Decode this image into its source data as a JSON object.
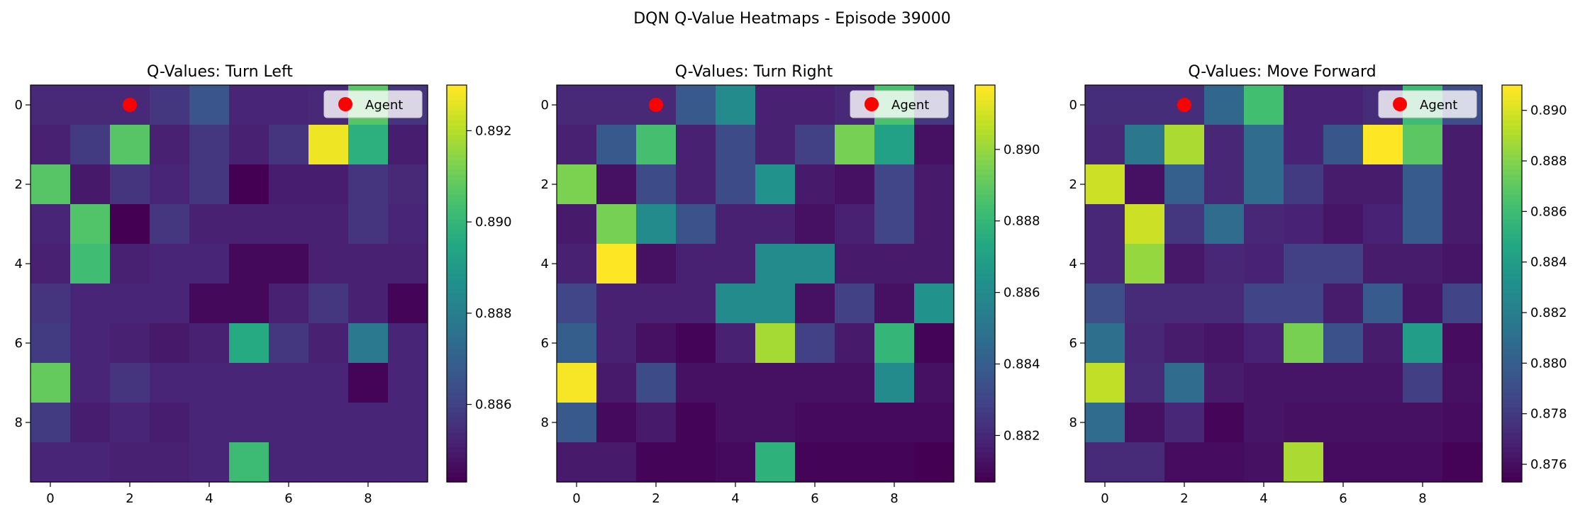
{
  "figure": {
    "title": "DQN Q-Value Heatmaps - Episode 39000"
  },
  "colors": {
    "agent_marker": "#ff0000",
    "axis": "#000000",
    "background": "#ffffff",
    "legend_frame": "#cccccc",
    "colormap": "viridis"
  },
  "chart_data": [
    {
      "type": "heatmap",
      "title": "Q-Values: Turn Left",
      "x_ticks": [
        0,
        2,
        4,
        6,
        8
      ],
      "y_ticks": [
        0,
        2,
        4,
        6,
        8
      ],
      "vmin": 0.8843,
      "vmax": 0.893,
      "colorbar_ticks": [
        0.886,
        0.888,
        0.89,
        0.892
      ],
      "legend_label": "Agent",
      "agent": [
        2,
        0
      ],
      "values": [
        [
          0.8853,
          0.8853,
          0.8853,
          0.8857,
          0.8866,
          0.8852,
          0.8852,
          0.8853,
          0.8907,
          0.8856
        ],
        [
          0.8851,
          0.8858,
          0.8907,
          0.8851,
          0.8857,
          0.8851,
          0.8856,
          0.8928,
          0.8898,
          0.885
        ],
        [
          0.8907,
          0.8849,
          0.8856,
          0.8852,
          0.8857,
          0.8843,
          0.885,
          0.885,
          0.8856,
          0.8853
        ],
        [
          0.8852,
          0.8906,
          0.8843,
          0.8857,
          0.8851,
          0.8851,
          0.8851,
          0.8851,
          0.8856,
          0.8852
        ],
        [
          0.8851,
          0.8903,
          0.8851,
          0.8852,
          0.8852,
          0.8845,
          0.8845,
          0.8851,
          0.8851,
          0.8851
        ],
        [
          0.8856,
          0.8852,
          0.8852,
          0.8852,
          0.8845,
          0.8845,
          0.8851,
          0.8857,
          0.8851,
          0.8844
        ],
        [
          0.8858,
          0.8852,
          0.8851,
          0.8849,
          0.8851,
          0.8896,
          0.8857,
          0.8851,
          0.8878,
          0.8852
        ],
        [
          0.8909,
          0.8852,
          0.8856,
          0.8852,
          0.8852,
          0.8852,
          0.8852,
          0.8852,
          0.8844,
          0.8852
        ],
        [
          0.8858,
          0.885,
          0.8852,
          0.885,
          0.8852,
          0.8852,
          0.8852,
          0.8852,
          0.8852,
          0.8852
        ],
        [
          0.8852,
          0.8852,
          0.8851,
          0.8851,
          0.8852,
          0.8902,
          0.8852,
          0.8852,
          0.8852,
          0.8852
        ]
      ]
    },
    {
      "type": "heatmap",
      "title": "Q-Values: Turn Right",
      "x_ticks": [
        0,
        2,
        4,
        6,
        8
      ],
      "y_ticks": [
        0,
        2,
        4,
        6,
        8
      ],
      "vmin": 0.8807,
      "vmax": 0.8918,
      "colorbar_ticks": [
        0.882,
        0.884,
        0.886,
        0.888,
        0.89
      ],
      "legend_label": "Agent",
      "agent": [
        2,
        0
      ],
      "values": [
        [
          0.882,
          0.882,
          0.882,
          0.8838,
          0.886,
          0.8817,
          0.8817,
          0.882,
          0.8886,
          0.8825
        ],
        [
          0.8817,
          0.8838,
          0.8885,
          0.8817,
          0.8832,
          0.8817,
          0.8828,
          0.8895,
          0.887,
          0.8812
        ],
        [
          0.8896,
          0.8812,
          0.8832,
          0.8817,
          0.8832,
          0.8863,
          0.8815,
          0.8812,
          0.883,
          0.8815
        ],
        [
          0.8815,
          0.8895,
          0.886,
          0.8835,
          0.8817,
          0.8817,
          0.8812,
          0.8817,
          0.883,
          0.8815
        ],
        [
          0.8817,
          0.8918,
          0.8812,
          0.8817,
          0.8817,
          0.886,
          0.886,
          0.8815,
          0.8815,
          0.8815
        ],
        [
          0.883,
          0.8817,
          0.8817,
          0.8817,
          0.886,
          0.886,
          0.8812,
          0.8828,
          0.8812,
          0.8863
        ],
        [
          0.884,
          0.8817,
          0.8812,
          0.8808,
          0.8817,
          0.8903,
          0.8828,
          0.8815,
          0.888,
          0.8808
        ],
        [
          0.8917,
          0.8815,
          0.8832,
          0.8812,
          0.8812,
          0.8812,
          0.8812,
          0.8812,
          0.886,
          0.8812
        ],
        [
          0.8838,
          0.881,
          0.8815,
          0.8808,
          0.8812,
          0.8812,
          0.881,
          0.881,
          0.881,
          0.881
        ],
        [
          0.8815,
          0.8815,
          0.8808,
          0.8808,
          0.881,
          0.8878,
          0.8808,
          0.8808,
          0.8808,
          0.8807
        ]
      ]
    },
    {
      "type": "heatmap",
      "title": "Q-Values: Move Forward",
      "x_ticks": [
        0,
        2,
        4,
        6,
        8
      ],
      "y_ticks": [
        0,
        2,
        4,
        6,
        8
      ],
      "vmin": 0.8753,
      "vmax": 0.891,
      "colorbar_ticks": [
        0.876,
        0.878,
        0.88,
        0.882,
        0.884,
        0.886,
        0.888,
        0.89
      ],
      "legend_label": "Agent",
      "agent": [
        2,
        0
      ],
      "values": [
        [
          0.8773,
          0.8773,
          0.8773,
          0.8805,
          0.8862,
          0.8768,
          0.8768,
          0.8773,
          0.886,
          0.879
        ],
        [
          0.877,
          0.8815,
          0.889,
          0.877,
          0.8808,
          0.8768,
          0.8795,
          0.891,
          0.887,
          0.8765
        ],
        [
          0.8898,
          0.876,
          0.88,
          0.877,
          0.8808,
          0.878,
          0.8765,
          0.8765,
          0.8798,
          0.8765
        ],
        [
          0.877,
          0.8898,
          0.8778,
          0.8808,
          0.877,
          0.8768,
          0.8762,
          0.8768,
          0.8798,
          0.8765
        ],
        [
          0.877,
          0.8885,
          0.8763,
          0.877,
          0.8768,
          0.8783,
          0.8783,
          0.8765,
          0.8765,
          0.8762
        ],
        [
          0.879,
          0.8772,
          0.8772,
          0.8772,
          0.8785,
          0.8785,
          0.8765,
          0.8798,
          0.8762,
          0.8785
        ],
        [
          0.881,
          0.877,
          0.8765,
          0.8762,
          0.8768,
          0.8878,
          0.8792,
          0.8765,
          0.884,
          0.8758
        ],
        [
          0.8895,
          0.8772,
          0.8808,
          0.8765,
          0.8762,
          0.8762,
          0.8762,
          0.8762,
          0.8782,
          0.876
        ],
        [
          0.8808,
          0.876,
          0.877,
          0.8755,
          0.8762,
          0.876,
          0.876,
          0.876,
          0.876,
          0.8758
        ],
        [
          0.8772,
          0.8772,
          0.8758,
          0.8758,
          0.876,
          0.889,
          0.8758,
          0.8758,
          0.8758,
          0.8754
        ]
      ]
    }
  ]
}
